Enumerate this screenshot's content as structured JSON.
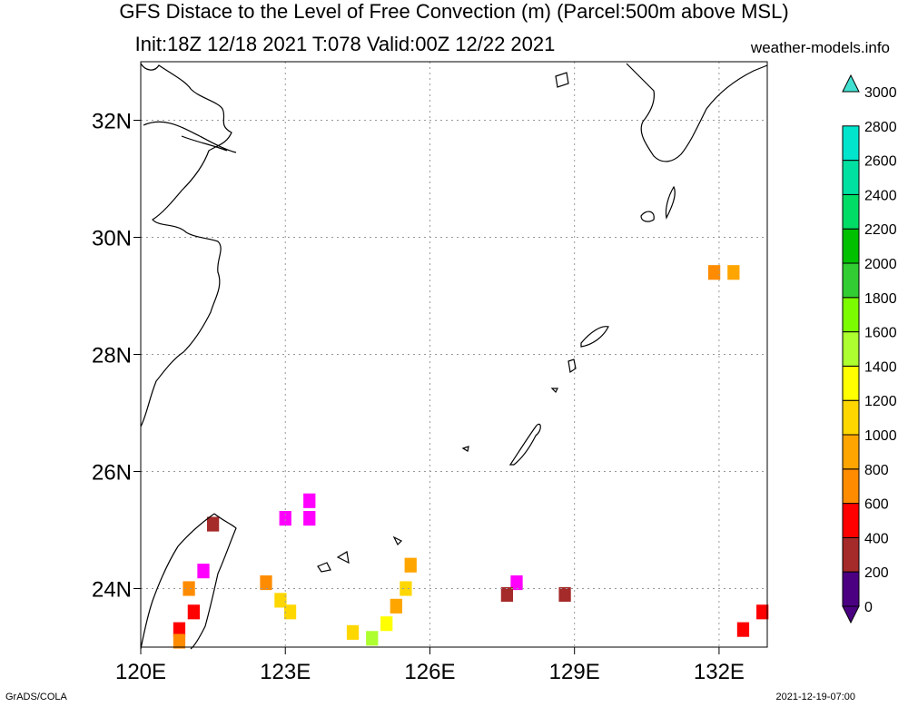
{
  "title": {
    "line1": "GFS Distace to the Level of Free Convection (m) (Parcel:500m above MSL)",
    "line2": "Init:18Z 12/18 2021 T:078 Valid:00Z 12/22 2021"
  },
  "source_site": "weather-models.info",
  "footer": {
    "left": "GrADS/COLA",
    "right": "2021-12-19-07:00"
  },
  "map": {
    "lon_range": [
      120,
      133
    ],
    "lat_range": [
      23,
      33
    ],
    "lon_ticks": [
      {
        "value": 120,
        "label": "120E"
      },
      {
        "value": 123,
        "label": "123E"
      },
      {
        "value": 126,
        "label": "126E"
      },
      {
        "value": 129,
        "label": "129E"
      },
      {
        "value": 132,
        "label": "132E"
      }
    ],
    "lat_ticks": [
      {
        "value": 24,
        "label": "24N"
      },
      {
        "value": 26,
        "label": "26N"
      },
      {
        "value": 28,
        "label": "28N"
      },
      {
        "value": 30,
        "label": "30N"
      },
      {
        "value": 32,
        "label": "32N"
      }
    ],
    "grid": "dotted"
  },
  "colorbar": {
    "levels": [
      "0",
      "200",
      "400",
      "600",
      "800",
      "1000",
      "1200",
      "1400",
      "1600",
      "1800",
      "2000",
      "2200",
      "2400",
      "2600",
      "2800",
      "3000"
    ],
    "colors": [
      "#4b0082",
      "#ff00ff",
      "#a52a2a",
      "#ff0000",
      "#ff8c00",
      "#ffa500",
      "#ffd700",
      "#ffff00",
      "#adff2f",
      "#7cfc00",
      "#32cd32",
      "#00c000",
      "#00dd66",
      "#00e0a0",
      "#00e5cc",
      "#40e0d0"
    ]
  },
  "cells": [
    {
      "lon": 123.5,
      "lat": 25.5,
      "value": 100
    },
    {
      "lon": 123.0,
      "lat": 25.2,
      "value": 100
    },
    {
      "lon": 123.5,
      "lat": 25.2,
      "value": 100
    },
    {
      "lon": 121.5,
      "lat": 25.1,
      "value": 300
    },
    {
      "lon": 121.3,
      "lat": 24.3,
      "value": 150
    },
    {
      "lon": 121.0,
      "lat": 24.0,
      "value": 700
    },
    {
      "lon": 121.1,
      "lat": 23.6,
      "value": 500
    },
    {
      "lon": 120.8,
      "lat": 23.3,
      "value": 500
    },
    {
      "lon": 120.8,
      "lat": 23.1,
      "value": 600
    },
    {
      "lon": 122.6,
      "lat": 24.1,
      "value": 700
    },
    {
      "lon": 122.9,
      "lat": 23.8,
      "value": 1100
    },
    {
      "lon": 123.1,
      "lat": 23.6,
      "value": 1100
    },
    {
      "lon": 125.6,
      "lat": 24.4,
      "value": 800
    },
    {
      "lon": 125.5,
      "lat": 24.0,
      "value": 1000
    },
    {
      "lon": 125.3,
      "lat": 23.7,
      "value": 900
    },
    {
      "lon": 125.1,
      "lat": 23.4,
      "value": 1300
    },
    {
      "lon": 124.8,
      "lat": 23.15,
      "value": 1500
    },
    {
      "lon": 124.4,
      "lat": 23.25,
      "value": 1100
    },
    {
      "lon": 127.8,
      "lat": 24.1,
      "value": 100
    },
    {
      "lon": 127.6,
      "lat": 23.9,
      "value": 250
    },
    {
      "lon": 128.8,
      "lat": 23.9,
      "value": 250
    },
    {
      "lon": 131.9,
      "lat": 29.4,
      "value": 600
    },
    {
      "lon": 132.3,
      "lat": 29.4,
      "value": 900
    },
    {
      "lon": 132.5,
      "lat": 23.3,
      "value": 450
    },
    {
      "lon": 132.9,
      "lat": 23.6,
      "value": 500
    }
  ]
}
